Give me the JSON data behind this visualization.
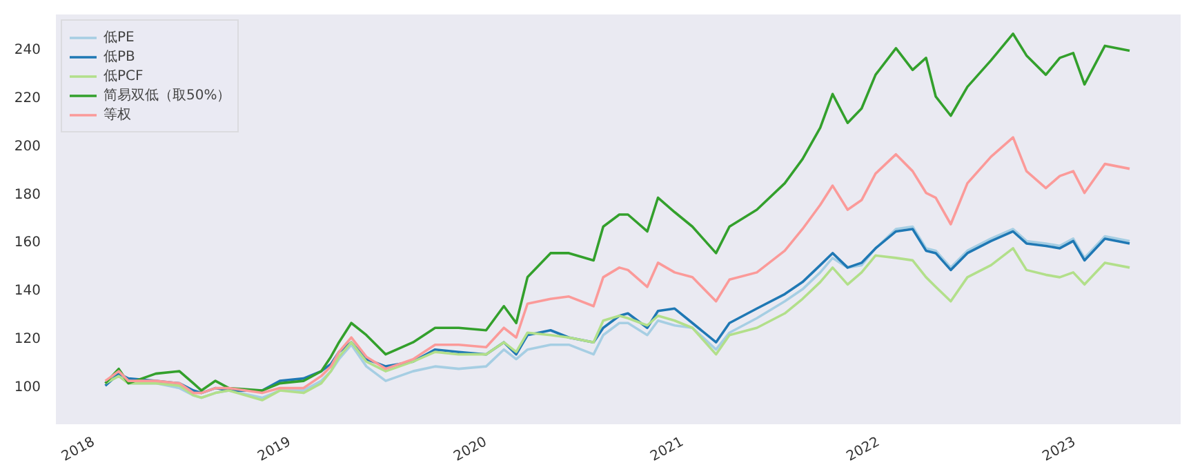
{
  "chart_data": {
    "type": "line",
    "x": [
      "2018-01-24",
      "2018-02-18",
      "2018-03-08",
      "2018-04-28",
      "2018-06-11",
      "2018-07-07",
      "2018-07-22",
      "2018-08-17",
      "2018-09-11",
      "2018-11-12",
      "2018-12-15",
      "2019-01-28",
      "2019-03-02",
      "2019-03-20",
      "2019-04-04",
      "2019-04-27",
      "2019-05-25",
      "2019-06-30",
      "2019-08-20",
      "2019-09-30",
      "2019-11-13",
      "2020-01-03",
      "2020-02-05",
      "2020-02-28",
      "2020-03-20",
      "2020-05-02",
      "2020-06-05",
      "2020-07-21",
      "2020-08-08",
      "2020-09-07",
      "2020-09-23",
      "2020-10-29",
      "2020-11-18",
      "2020-12-19",
      "2021-01-21",
      "2021-03-06",
      "2021-03-31",
      "2021-05-21",
      "2021-07-12",
      "2021-08-14",
      "2021-09-16",
      "2021-10-09",
      "2021-11-06",
      "2021-12-02",
      "2021-12-28",
      "2022-02-04",
      "2022-03-07",
      "2022-04-01",
      "2022-04-19",
      "2022-05-17",
      "2022-06-17",
      "2022-07-31",
      "2022-09-10",
      "2022-10-05",
      "2022-11-10",
      "2022-12-06",
      "2022-12-31",
      "2023-01-21",
      "2023-02-28",
      "2023-04-15"
    ],
    "series": [
      {
        "name": "低PE",
        "color": "#a6cee3",
        "values": [
          101,
          104,
          101,
          101,
          99,
          96,
          95,
          97,
          98,
          95,
          98,
          98,
          102,
          106,
          111,
          117,
          108,
          102,
          106,
          108,
          107,
          108,
          115,
          111,
          115,
          117,
          117,
          113,
          121,
          126,
          126,
          121,
          127,
          125,
          124,
          115,
          122,
          128,
          135,
          140,
          147,
          153,
          149,
          150,
          157,
          165,
          166,
          157,
          156,
          149,
          156,
          161,
          165,
          160,
          159,
          158,
          161,
          153,
          162,
          160
        ]
      },
      {
        "name": "低PB",
        "color": "#1f78b4",
        "values": [
          100,
          105,
          103,
          102,
          101,
          98,
          97,
          99,
          98,
          98,
          102,
          103,
          106,
          109,
          114,
          118,
          111,
          108,
          110,
          115,
          114,
          113,
          118,
          113,
          121,
          123,
          120,
          118,
          124,
          129,
          130,
          124,
          131,
          132,
          126,
          118,
          126,
          132,
          138,
          143,
          150,
          155,
          149,
          151,
          157,
          164,
          165,
          156,
          155,
          148,
          155,
          160,
          164,
          159,
          158,
          157,
          160,
          152,
          161,
          159
        ]
      },
      {
        "name": "低PCF",
        "color": "#b2df8a",
        "values": [
          101,
          104,
          101,
          101,
          100,
          96,
          95,
          97,
          98,
          94,
          98,
          97,
          101,
          106,
          112,
          118,
          110,
          106,
          110,
          114,
          113,
          113,
          118,
          114,
          122,
          121,
          120,
          118,
          127,
          129,
          128,
          125,
          129,
          127,
          124,
          113,
          121,
          124,
          130,
          136,
          143,
          149,
          142,
          147,
          154,
          153,
          152,
          145,
          141,
          135,
          145,
          150,
          157,
          148,
          146,
          145,
          147,
          142,
          151,
          149
        ]
      },
      {
        "name": "简易双低（取50%）",
        "color": "#33a02c",
        "values": [
          101,
          107,
          101,
          105,
          106,
          101,
          98,
          102,
          99,
          98,
          101,
          102,
          106,
          112,
          118,
          126,
          121,
          113,
          118,
          124,
          124,
          123,
          133,
          126,
          145,
          155,
          155,
          152,
          166,
          171,
          171,
          164,
          178,
          172,
          166,
          155,
          166,
          173,
          184,
          194,
          207,
          221,
          209,
          215,
          229,
          240,
          231,
          236,
          220,
          212,
          224,
          235,
          246,
          237,
          229,
          236,
          238,
          225,
          241,
          239
        ]
      },
      {
        "name": "等权",
        "color": "#fb9a99",
        "values": [
          102,
          106,
          102,
          102,
          101,
          97,
          97,
          99,
          99,
          97,
          99,
          99,
          104,
          108,
          114,
          120,
          112,
          107,
          111,
          117,
          117,
          116,
          124,
          120,
          134,
          136,
          137,
          133,
          145,
          149,
          148,
          141,
          151,
          147,
          145,
          135,
          144,
          147,
          156,
          165,
          175,
          183,
          173,
          177,
          188,
          196,
          189,
          180,
          178,
          167,
          184,
          195,
          203,
          189,
          182,
          187,
          189,
          180,
          192,
          190
        ]
      }
    ],
    "xlim": [
      "2017-10-24",
      "2023-07-19"
    ],
    "xticks": [
      "2018",
      "2019",
      "2020",
      "2021",
      "2022",
      "2023"
    ],
    "ylim": [
      84,
      254
    ],
    "yticks": [
      100,
      120,
      140,
      160,
      180,
      200,
      220,
      240
    ],
    "legend": "top left"
  }
}
